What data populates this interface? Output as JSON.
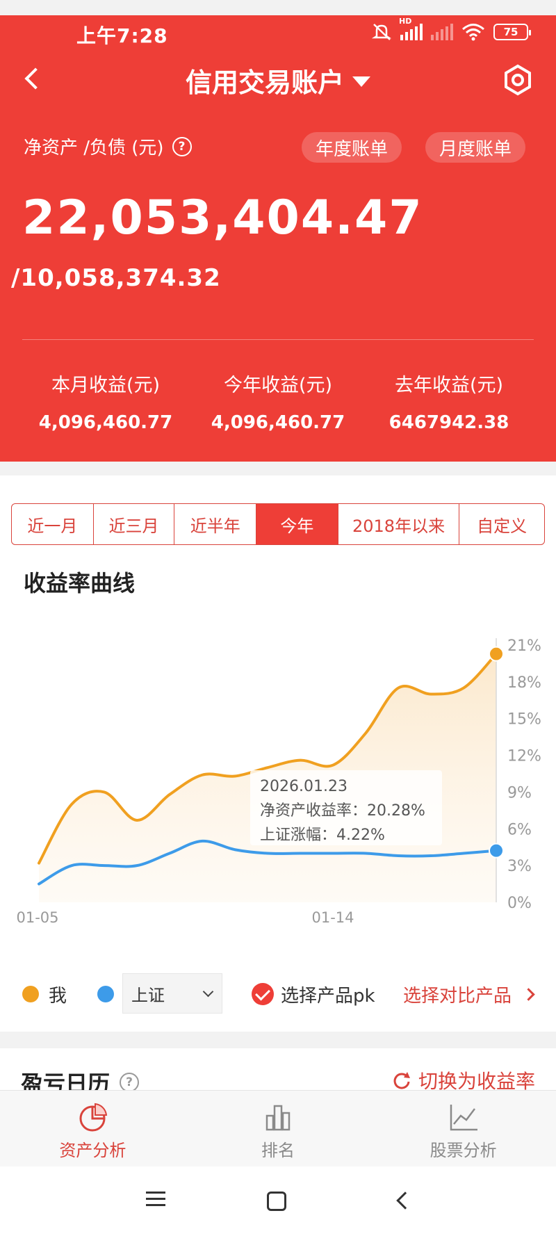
{
  "status_bar": {
    "time": "上午7:28",
    "hd_label": "HD",
    "battery": "75"
  },
  "header": {
    "title": "信用交易账户",
    "net_asset_label": "净资产 /负债 (元)",
    "help_icon": "question-icon",
    "annual_bill": "年度账单",
    "monthly_bill": "月度账单",
    "net_asset_value": "22,053,404.47",
    "debt_value": "/10,058,374.32"
  },
  "income": [
    {
      "label": "本月收益(元)",
      "value": "4,096,460.77"
    },
    {
      "label": "今年收益(元)",
      "value": "4,096,460.77"
    },
    {
      "label": "去年收益(元)",
      "value": "6467942.38"
    }
  ],
  "period_tabs": [
    {
      "label": "近一月",
      "active": false
    },
    {
      "label": "近三月",
      "active": false
    },
    {
      "label": "近半年",
      "active": false
    },
    {
      "label": "今年",
      "active": true
    },
    {
      "label": "2018年以来",
      "active": false
    },
    {
      "label": "自定义",
      "active": false
    }
  ],
  "chart_title": "收益率曲线",
  "chart_data": {
    "type": "line",
    "x_ticks": [
      {
        "date": "01-05",
        "year": "2026",
        "x": 0
      },
      {
        "date": "01-14",
        "year": "2026",
        "x": 9
      },
      {
        "date": "01-23",
        "year": "2026",
        "x": 18
      }
    ],
    "ylim": [
      0,
      21
    ],
    "y_ticks": [
      {
        "v": 0,
        "label": "0%"
      },
      {
        "v": 3,
        "label": "3%"
      },
      {
        "v": 6,
        "label": "6%"
      },
      {
        "v": 9,
        "label": "9%"
      },
      {
        "v": 12,
        "label": "12%"
      },
      {
        "v": 15,
        "label": "15%"
      },
      {
        "v": 18,
        "label": "18%"
      },
      {
        "v": 21,
        "label": "21%"
      }
    ],
    "series": [
      {
        "name": "我",
        "color": "#f0a020",
        "points": [
          [
            0,
            3.2
          ],
          [
            1,
            8.0
          ],
          [
            2,
            9.0
          ],
          [
            3,
            6.7
          ],
          [
            4,
            8.8
          ],
          [
            5,
            10.4
          ],
          [
            6,
            10.3
          ],
          [
            7,
            11.0
          ],
          [
            8,
            11.6
          ],
          [
            9,
            11.2
          ],
          [
            10,
            13.8
          ],
          [
            11,
            17.5
          ],
          [
            12,
            17.0
          ],
          [
            13,
            17.5
          ],
          [
            14,
            20.28
          ]
        ]
      },
      {
        "name": "上证",
        "color": "#3d9be9",
        "points": [
          [
            0,
            1.5
          ],
          [
            1,
            3.0
          ],
          [
            2,
            3.0
          ],
          [
            3,
            3.0
          ],
          [
            4,
            4.0
          ],
          [
            5,
            5.0
          ],
          [
            6,
            4.3
          ],
          [
            7,
            4.0
          ],
          [
            8,
            4.0
          ],
          [
            9,
            4.0
          ],
          [
            10,
            4.0
          ],
          [
            11,
            3.8
          ],
          [
            12,
            3.8
          ],
          [
            13,
            4.0
          ],
          [
            14,
            4.22
          ]
        ]
      }
    ],
    "tooltip": {
      "date": "2026.01.23",
      "line1": "净资产收益率：20.28%",
      "line2": "上证涨幅：4.22%"
    }
  },
  "legend": {
    "me": "我",
    "me_color": "#f0a020",
    "bench_color": "#3d9be9",
    "benchmark_selected": "上证",
    "pk_label": "选择产品pk",
    "compare_label": "选择对比产品"
  },
  "calendar": {
    "title": "盈亏日历",
    "switch_label": "切换为收益率"
  },
  "tabbar": [
    {
      "label": "资产分析",
      "icon": "pie-chart-icon",
      "active": true
    },
    {
      "label": "排名",
      "icon": "bar-chart-icon",
      "active": false
    },
    {
      "label": "股票分析",
      "icon": "line-chart-icon",
      "active": false
    }
  ]
}
